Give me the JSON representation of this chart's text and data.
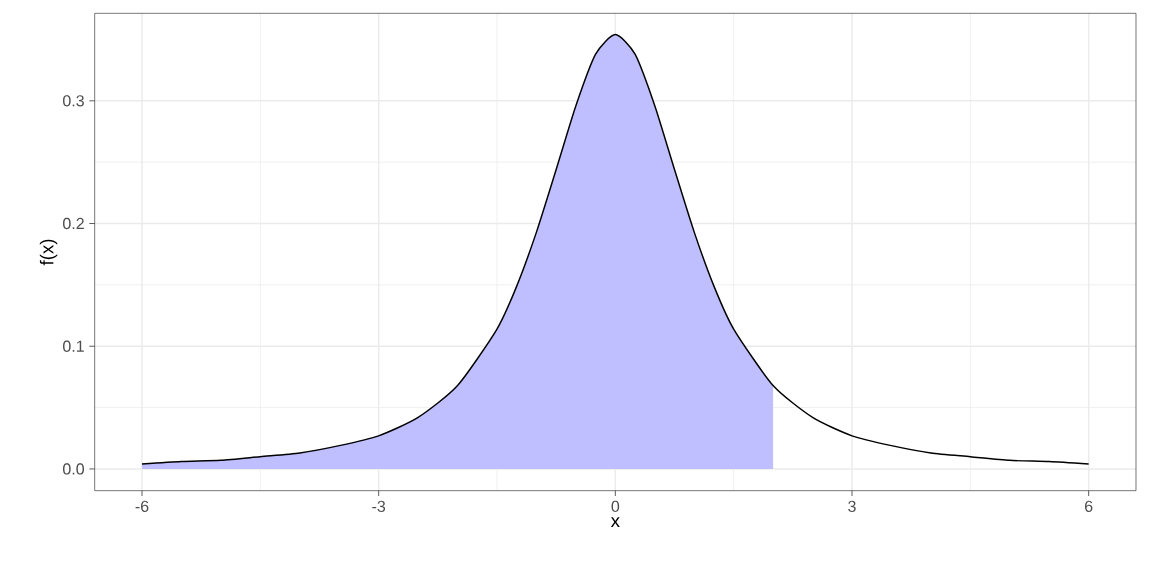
{
  "chart_data": {
    "type": "line",
    "xlabel": "x",
    "ylabel": "f(x)",
    "xlim": [
      -6.6,
      6.6
    ],
    "ylim": [
      -0.0177,
      0.3713
    ],
    "xticks": [
      -6,
      -3,
      0,
      3,
      6
    ],
    "yticks": [
      {
        "value": 0,
        "label": "0.0"
      },
      0.1,
      0.2,
      0.3
    ],
    "grid": true,
    "series": [
      {
        "type": "area",
        "color": "#bfbfff",
        "x": [
          -6,
          -5.5,
          -5,
          -4.5,
          -4,
          -3.5,
          -3,
          -2.5,
          -2,
          -1.5,
          -1.25,
          -1,
          -0.75,
          -0.5,
          -0.25,
          0,
          0.25,
          0.5,
          0.75,
          1,
          1.25,
          1.5,
          2
        ],
        "values": [
          0.004,
          0.006,
          0.007,
          0.01,
          0.013,
          0.019,
          0.027,
          0.042,
          0.068,
          0.114,
          0.149,
          0.193,
          0.244,
          0.296,
          0.338,
          0.354,
          0.338,
          0.296,
          0.244,
          0.193,
          0.149,
          0.114,
          0.068
        ]
      },
      {
        "color": "#000000",
        "x": [
          -6,
          -5.5,
          -5,
          -4.5,
          -4,
          -3.5,
          -3,
          -2.5,
          -2,
          -1.5,
          -1.25,
          -1,
          -0.75,
          -0.5,
          -0.25,
          0,
          0.25,
          0.5,
          0.75,
          1,
          1.25,
          1.5,
          2,
          2.5,
          3,
          3.5,
          4,
          4.5,
          5,
          5.5,
          6
        ],
        "values": [
          0.004,
          0.006,
          0.007,
          0.01,
          0.013,
          0.019,
          0.027,
          0.042,
          0.068,
          0.114,
          0.149,
          0.193,
          0.244,
          0.296,
          0.338,
          0.354,
          0.338,
          0.296,
          0.244,
          0.193,
          0.149,
          0.114,
          0.068,
          0.042,
          0.027,
          0.019,
          0.013,
          0.01,
          0.007,
          0.006,
          0.004
        ]
      }
    ]
  }
}
